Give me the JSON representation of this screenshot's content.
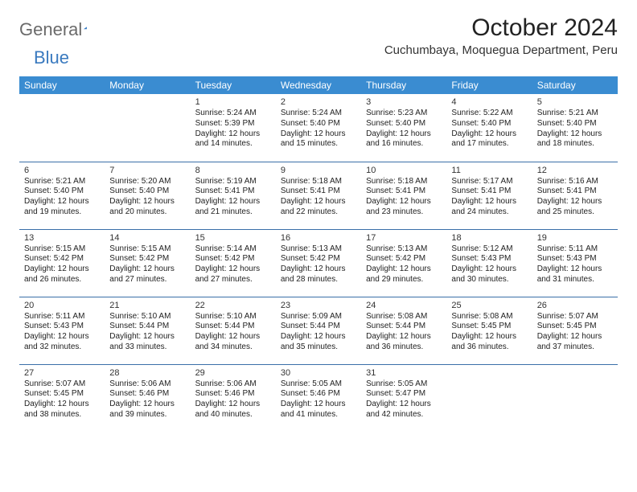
{
  "logo": {
    "text1": "General",
    "text2": "Blue"
  },
  "title": "October 2024",
  "location": "Cuchumbaya, Moquegua Department, Peru",
  "colors": {
    "header_bg": "#3a8cd1",
    "border": "#3a6fa8",
    "logo_blue": "#3a7abf"
  },
  "weekdays": [
    "Sunday",
    "Monday",
    "Tuesday",
    "Wednesday",
    "Thursday",
    "Friday",
    "Saturday"
  ],
  "weeks": [
    [
      null,
      null,
      {
        "d": "1",
        "sr": "Sunrise: 5:24 AM",
        "ss": "Sunset: 5:39 PM",
        "dl1": "Daylight: 12 hours",
        "dl2": "and 14 minutes."
      },
      {
        "d": "2",
        "sr": "Sunrise: 5:24 AM",
        "ss": "Sunset: 5:40 PM",
        "dl1": "Daylight: 12 hours",
        "dl2": "and 15 minutes."
      },
      {
        "d": "3",
        "sr": "Sunrise: 5:23 AM",
        "ss": "Sunset: 5:40 PM",
        "dl1": "Daylight: 12 hours",
        "dl2": "and 16 minutes."
      },
      {
        "d": "4",
        "sr": "Sunrise: 5:22 AM",
        "ss": "Sunset: 5:40 PM",
        "dl1": "Daylight: 12 hours",
        "dl2": "and 17 minutes."
      },
      {
        "d": "5",
        "sr": "Sunrise: 5:21 AM",
        "ss": "Sunset: 5:40 PM",
        "dl1": "Daylight: 12 hours",
        "dl2": "and 18 minutes."
      }
    ],
    [
      {
        "d": "6",
        "sr": "Sunrise: 5:21 AM",
        "ss": "Sunset: 5:40 PM",
        "dl1": "Daylight: 12 hours",
        "dl2": "and 19 minutes."
      },
      {
        "d": "7",
        "sr": "Sunrise: 5:20 AM",
        "ss": "Sunset: 5:40 PM",
        "dl1": "Daylight: 12 hours",
        "dl2": "and 20 minutes."
      },
      {
        "d": "8",
        "sr": "Sunrise: 5:19 AM",
        "ss": "Sunset: 5:41 PM",
        "dl1": "Daylight: 12 hours",
        "dl2": "and 21 minutes."
      },
      {
        "d": "9",
        "sr": "Sunrise: 5:18 AM",
        "ss": "Sunset: 5:41 PM",
        "dl1": "Daylight: 12 hours",
        "dl2": "and 22 minutes."
      },
      {
        "d": "10",
        "sr": "Sunrise: 5:18 AM",
        "ss": "Sunset: 5:41 PM",
        "dl1": "Daylight: 12 hours",
        "dl2": "and 23 minutes."
      },
      {
        "d": "11",
        "sr": "Sunrise: 5:17 AM",
        "ss": "Sunset: 5:41 PM",
        "dl1": "Daylight: 12 hours",
        "dl2": "and 24 minutes."
      },
      {
        "d": "12",
        "sr": "Sunrise: 5:16 AM",
        "ss": "Sunset: 5:41 PM",
        "dl1": "Daylight: 12 hours",
        "dl2": "and 25 minutes."
      }
    ],
    [
      {
        "d": "13",
        "sr": "Sunrise: 5:15 AM",
        "ss": "Sunset: 5:42 PM",
        "dl1": "Daylight: 12 hours",
        "dl2": "and 26 minutes."
      },
      {
        "d": "14",
        "sr": "Sunrise: 5:15 AM",
        "ss": "Sunset: 5:42 PM",
        "dl1": "Daylight: 12 hours",
        "dl2": "and 27 minutes."
      },
      {
        "d": "15",
        "sr": "Sunrise: 5:14 AM",
        "ss": "Sunset: 5:42 PM",
        "dl1": "Daylight: 12 hours",
        "dl2": "and 27 minutes."
      },
      {
        "d": "16",
        "sr": "Sunrise: 5:13 AM",
        "ss": "Sunset: 5:42 PM",
        "dl1": "Daylight: 12 hours",
        "dl2": "and 28 minutes."
      },
      {
        "d": "17",
        "sr": "Sunrise: 5:13 AM",
        "ss": "Sunset: 5:42 PM",
        "dl1": "Daylight: 12 hours",
        "dl2": "and 29 minutes."
      },
      {
        "d": "18",
        "sr": "Sunrise: 5:12 AM",
        "ss": "Sunset: 5:43 PM",
        "dl1": "Daylight: 12 hours",
        "dl2": "and 30 minutes."
      },
      {
        "d": "19",
        "sr": "Sunrise: 5:11 AM",
        "ss": "Sunset: 5:43 PM",
        "dl1": "Daylight: 12 hours",
        "dl2": "and 31 minutes."
      }
    ],
    [
      {
        "d": "20",
        "sr": "Sunrise: 5:11 AM",
        "ss": "Sunset: 5:43 PM",
        "dl1": "Daylight: 12 hours",
        "dl2": "and 32 minutes."
      },
      {
        "d": "21",
        "sr": "Sunrise: 5:10 AM",
        "ss": "Sunset: 5:44 PM",
        "dl1": "Daylight: 12 hours",
        "dl2": "and 33 minutes."
      },
      {
        "d": "22",
        "sr": "Sunrise: 5:10 AM",
        "ss": "Sunset: 5:44 PM",
        "dl1": "Daylight: 12 hours",
        "dl2": "and 34 minutes."
      },
      {
        "d": "23",
        "sr": "Sunrise: 5:09 AM",
        "ss": "Sunset: 5:44 PM",
        "dl1": "Daylight: 12 hours",
        "dl2": "and 35 minutes."
      },
      {
        "d": "24",
        "sr": "Sunrise: 5:08 AM",
        "ss": "Sunset: 5:44 PM",
        "dl1": "Daylight: 12 hours",
        "dl2": "and 36 minutes."
      },
      {
        "d": "25",
        "sr": "Sunrise: 5:08 AM",
        "ss": "Sunset: 5:45 PM",
        "dl1": "Daylight: 12 hours",
        "dl2": "and 36 minutes."
      },
      {
        "d": "26",
        "sr": "Sunrise: 5:07 AM",
        "ss": "Sunset: 5:45 PM",
        "dl1": "Daylight: 12 hours",
        "dl2": "and 37 minutes."
      }
    ],
    [
      {
        "d": "27",
        "sr": "Sunrise: 5:07 AM",
        "ss": "Sunset: 5:45 PM",
        "dl1": "Daylight: 12 hours",
        "dl2": "and 38 minutes."
      },
      {
        "d": "28",
        "sr": "Sunrise: 5:06 AM",
        "ss": "Sunset: 5:46 PM",
        "dl1": "Daylight: 12 hours",
        "dl2": "and 39 minutes."
      },
      {
        "d": "29",
        "sr": "Sunrise: 5:06 AM",
        "ss": "Sunset: 5:46 PM",
        "dl1": "Daylight: 12 hours",
        "dl2": "and 40 minutes."
      },
      {
        "d": "30",
        "sr": "Sunrise: 5:05 AM",
        "ss": "Sunset: 5:46 PM",
        "dl1": "Daylight: 12 hours",
        "dl2": "and 41 minutes."
      },
      {
        "d": "31",
        "sr": "Sunrise: 5:05 AM",
        "ss": "Sunset: 5:47 PM",
        "dl1": "Daylight: 12 hours",
        "dl2": "and 42 minutes."
      },
      null,
      null
    ]
  ]
}
